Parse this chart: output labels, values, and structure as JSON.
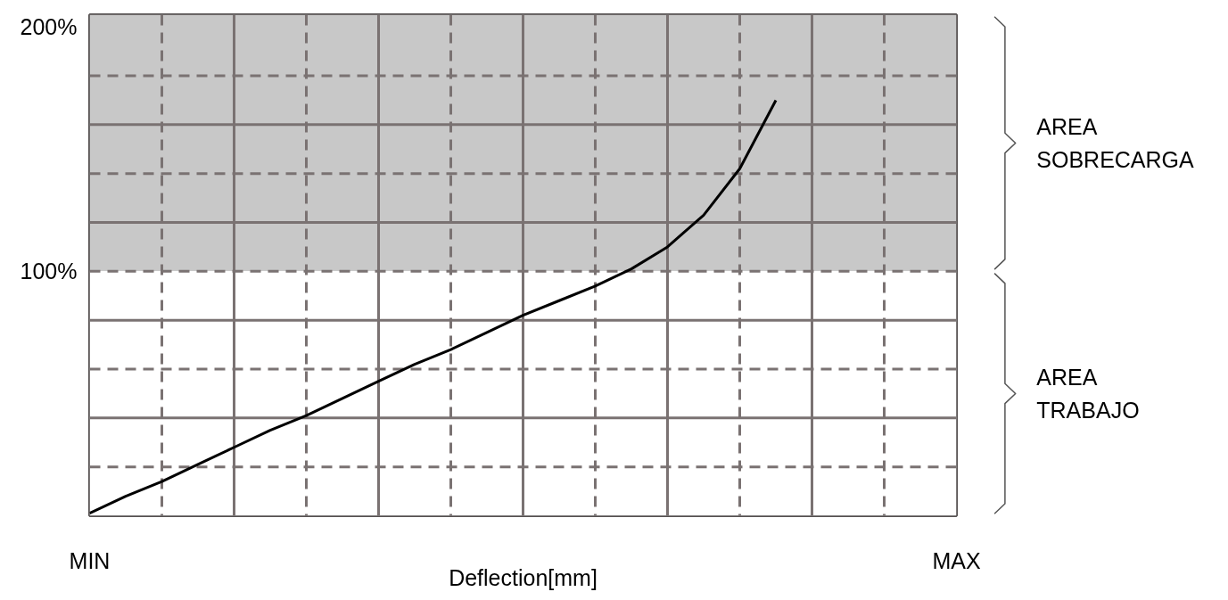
{
  "chart_data": {
    "type": "line",
    "xlabel": "Deflection[mm]",
    "categories": [
      "MIN",
      null,
      null,
      null,
      null,
      null,
      null,
      null,
      null,
      null,
      null,
      null,
      null,
      null,
      null,
      null,
      null,
      null,
      null,
      null,
      null,
      null,
      null,
      null,
      "MAX"
    ],
    "series": [
      {
        "color": "#000000",
        "values": [
          1,
          8,
          14,
          21,
          28,
          35,
          41,
          48,
          55,
          62,
          68,
          75,
          82,
          88,
          94,
          101,
          110,
          123,
          142,
          170,
          null,
          null,
          null,
          null,
          null
        ]
      }
    ],
    "ylim": [
      0,
      205
    ],
    "yticks": [
      {
        "value": 20,
        "label": null
      },
      {
        "value": 40,
        "label": null
      },
      {
        "value": 60,
        "label": null
      },
      {
        "value": 80,
        "label": null
      },
      {
        "value": 100,
        "label": "100%"
      },
      {
        "value": 120,
        "label": null
      },
      {
        "value": 140,
        "label": null
      },
      {
        "value": 160,
        "label": null
      },
      {
        "value": 180,
        "label": null
      },
      {
        "value": 200,
        "label": "200%"
      }
    ],
    "grid": true,
    "marker": "none",
    "line_style": "solid",
    "annotations": [
      "AREA\nSOBRECARGA",
      "AREA\nTRABAJO"
    ],
    "bands": [
      {
        "axis": "y",
        "from": 100,
        "to": 205,
        "color": "#c8c8c8"
      },
      {
        "axis": "y",
        "from": 0,
        "to": 100,
        "color": "#ffffff"
      }
    ]
  }
}
